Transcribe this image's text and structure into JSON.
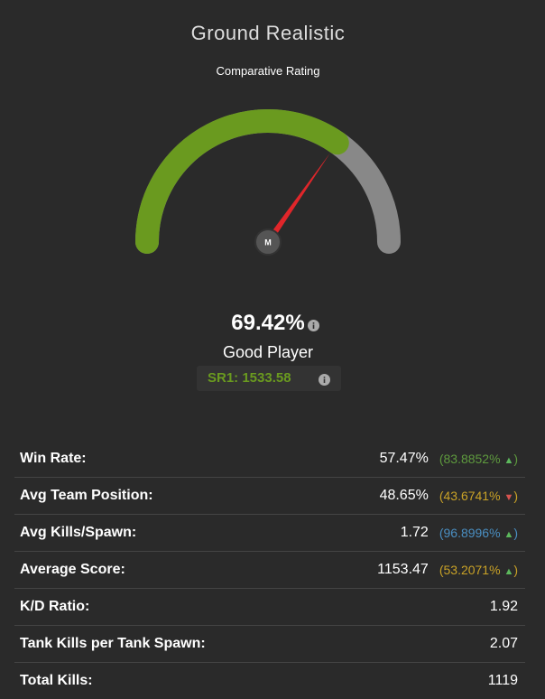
{
  "header": {
    "title": "Ground Realistic",
    "subtitle": "Comparative Rating"
  },
  "rating": {
    "value": 69.42,
    "label": "69.42%",
    "verdict": "Good Player",
    "sr": "SR1: 1533.58",
    "center": "M"
  },
  "stats": [
    {
      "label": "Win Rate:",
      "value": "57.47%",
      "comparison": {
        "text": "(83.8852%",
        "arrow": "▲",
        "close": ")",
        "color": "#5e9a3e",
        "arrow_color": "#5cb85c"
      }
    },
    {
      "label": "Avg Team Position:",
      "value": "48.65%",
      "comparison": {
        "text": "(43.6741%",
        "arrow": "▼",
        "close": ")",
        "color": "#c9a227",
        "arrow_color": "#d9534f"
      }
    },
    {
      "label": "Avg Kills/Spawn:",
      "value": "1.72",
      "comparison": {
        "text": "(96.8996%",
        "arrow": "▲",
        "close": ")",
        "color": "#4a8fc2",
        "arrow_color": "#5cb85c"
      }
    },
    {
      "label": "Average Score:",
      "value": "1153.47",
      "comparison": {
        "text": "(53.2071%",
        "arrow": "▲",
        "close": ")",
        "color": "#c9a227",
        "arrow_color": "#5cb85c"
      }
    },
    {
      "label": "K/D Ratio:",
      "value": "1.92"
    },
    {
      "label": "Tank Kills per Tank Spawn:",
      "value": "2.07"
    },
    {
      "label": "Total Kills:",
      "value": "1119"
    }
  ]
}
